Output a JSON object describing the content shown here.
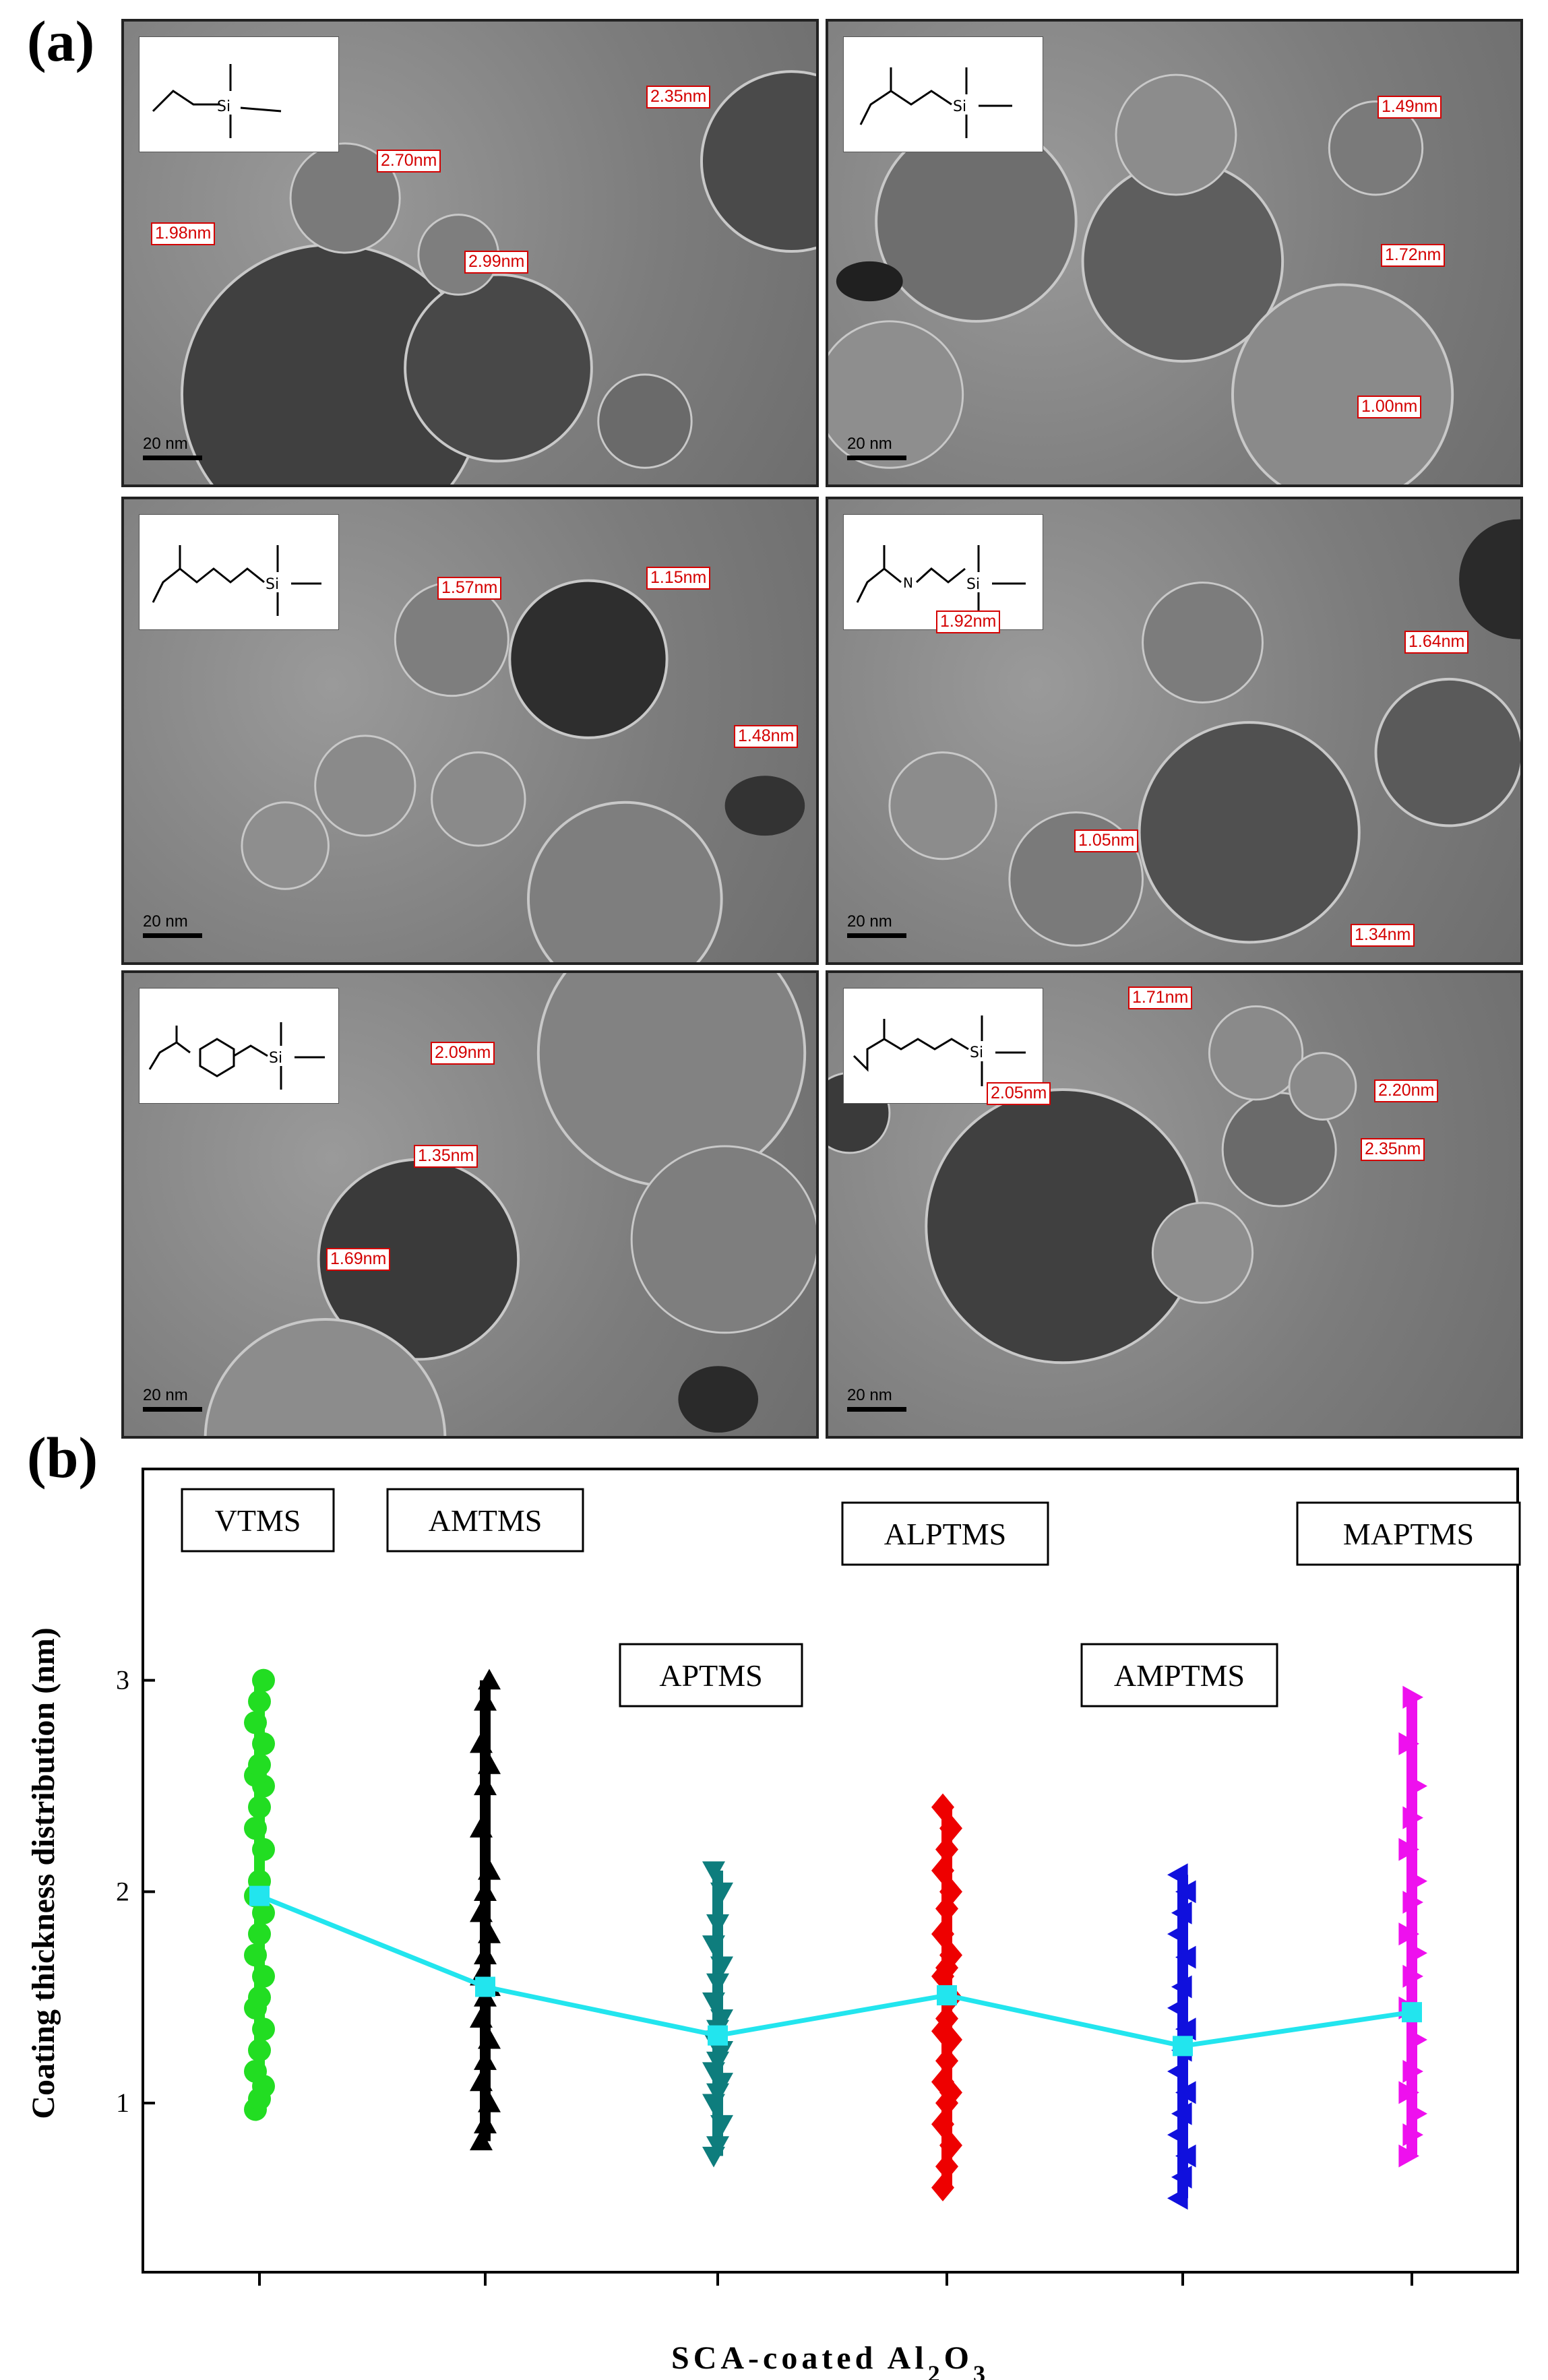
{
  "panel_a_label": "(a)",
  "panel_b_label": "(b)",
  "tem_scale_label": "20 nm",
  "tem_panels": [
    {
      "compound": "VTMS",
      "measurements": [
        "2.35nm",
        "2.70nm",
        "1.98nm",
        "2.99nm"
      ]
    },
    {
      "compound": "AMTMS",
      "measurements": [
        "1.49nm",
        "1.72nm",
        "1.00nm"
      ]
    },
    {
      "compound": "APTMS",
      "measurements": [
        "1.57nm",
        "1.15nm",
        "1.48nm"
      ]
    },
    {
      "compound": "ALPTMS",
      "measurements": [
        "1.92nm",
        "1.64nm",
        "1.05nm",
        "1.34nm"
      ]
    },
    {
      "compound": "AMPTMS",
      "measurements": [
        "2.09nm",
        "1.35nm",
        "1.69nm"
      ]
    },
    {
      "compound": "MAPTMS",
      "measurements": [
        "1.71nm",
        "2.05nm",
        "2.20nm",
        "2.35nm"
      ]
    }
  ],
  "chart_data": {
    "type": "scatter",
    "xlabel": "SCA-coated Al2O3",
    "ylabel": "Coating thickness distribution (nm)",
    "ylim": [
      0.2,
      4.0
    ],
    "yticks": [
      1,
      2,
      3
    ],
    "categories": [
      "VTMS",
      "AMTMS",
      "APTMS",
      "ALPTMS",
      "AMPTMS",
      "MAPTMS"
    ],
    "series": [
      {
        "name": "VTMS",
        "color": "#22dd22",
        "marker": "circle",
        "min": 0.97,
        "max": 3.0,
        "values": [
          0.97,
          1.02,
          1.08,
          1.15,
          1.25,
          1.35,
          1.45,
          1.5,
          1.6,
          1.7,
          1.8,
          1.9,
          1.98,
          2.05,
          2.2,
          2.3,
          2.4,
          2.5,
          2.55,
          2.6,
          2.7,
          2.8,
          2.9,
          3.0
        ]
      },
      {
        "name": "AMTMS",
        "color": "#000000",
        "marker": "triangle-up",
        "min": 0.82,
        "max": 3.0,
        "values": [
          0.82,
          0.9,
          1.0,
          1.1,
          1.2,
          1.3,
          1.4,
          1.5,
          1.55,
          1.6,
          1.7,
          1.8,
          1.9,
          2.0,
          2.1,
          2.3,
          2.5,
          2.6,
          2.7,
          2.9,
          3.0
        ]
      },
      {
        "name": "APTMS",
        "color": "#0e7d7d",
        "marker": "triangle-down",
        "min": 0.75,
        "max": 2.1,
        "values": [
          0.75,
          0.8,
          0.9,
          1.0,
          1.05,
          1.1,
          1.15,
          1.2,
          1.25,
          1.3,
          1.35,
          1.4,
          1.48,
          1.57,
          1.65,
          1.75,
          1.85,
          2.0,
          2.1
        ]
      },
      {
        "name": "ALPTMS",
        "color": "#ee0000",
        "marker": "diamond",
        "min": 0.6,
        "max": 2.4,
        "values": [
          0.6,
          0.7,
          0.8,
          0.9,
          1.0,
          1.05,
          1.1,
          1.2,
          1.3,
          1.34,
          1.4,
          1.5,
          1.6,
          1.64,
          1.7,
          1.8,
          1.92,
          2.0,
          2.1,
          2.2,
          2.3,
          2.4
        ]
      },
      {
        "name": "AMPTMS",
        "color": "#1010dd",
        "marker": "triangle-left",
        "min": 0.55,
        "max": 2.08,
        "values": [
          0.55,
          0.65,
          0.75,
          0.85,
          0.95,
          1.05,
          1.15,
          1.25,
          1.35,
          1.45,
          1.55,
          1.69,
          1.8,
          1.9,
          2.0,
          2.08
        ]
      },
      {
        "name": "MAPTMS",
        "color": "#ee10ee",
        "marker": "triangle-right",
        "min": 0.75,
        "max": 2.92,
        "values": [
          0.75,
          0.85,
          0.95,
          1.05,
          1.15,
          1.3,
          1.45,
          1.6,
          1.71,
          1.8,
          1.95,
          2.05,
          2.2,
          2.35,
          2.5,
          2.7,
          2.92
        ]
      }
    ],
    "mean_line": {
      "color": "#22e5ee",
      "values": [
        1.98,
        1.55,
        1.32,
        1.51,
        1.27,
        1.43
      ]
    }
  }
}
